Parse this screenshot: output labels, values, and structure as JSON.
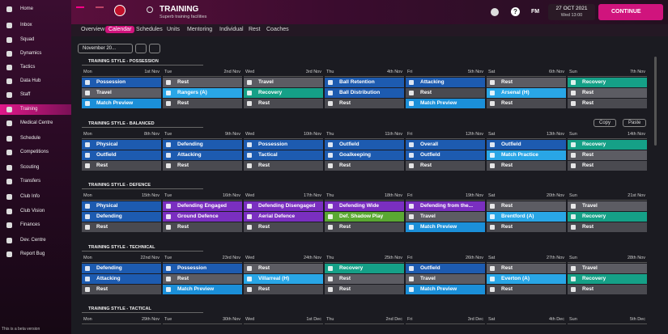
{
  "sidebar": {
    "items": [
      "Home",
      "Inbox",
      "Squad",
      "Dynamics",
      "Tactics",
      "Data Hub",
      "Staff",
      "Training",
      "Medical Centre",
      "Schedule",
      "Competitions",
      "Scouting",
      "Transfers",
      "Club Info",
      "Club Vision",
      "Finances",
      "Dev. Centre",
      "Report Bug"
    ],
    "active": 7,
    "footer": "This is a beta version"
  },
  "header": {
    "title": "TRAINING",
    "subtitle": "Superb training facilities",
    "fm": "FM",
    "help": "?",
    "date": "27 OCT 2021",
    "time": "Wed 13:00",
    "continue": "CONTINUE"
  },
  "tabs": {
    "items": [
      "Overview",
      "Calendar",
      "Schedules",
      "Units",
      "Mentoring",
      "Individual",
      "Rest",
      "Coaches"
    ],
    "active": 1
  },
  "month": "November 20...",
  "buttons": {
    "copy": "Copy",
    "paste": "Paste"
  },
  "weeks": [
    {
      "style": "TRAINING STYLE - POSSESSION",
      "days": [
        {
          "name": "Mon",
          "date": "1st Nov"
        },
        {
          "name": "Tue",
          "date": "2nd Nov"
        },
        {
          "name": "Wed",
          "date": "3rd Nov"
        },
        {
          "name": "Thu",
          "date": "4th Nov"
        },
        {
          "name": "Fri",
          "date": "5th Nov"
        },
        {
          "name": "Sat",
          "date": "6th Nov"
        },
        {
          "name": "Sun",
          "date": "7th Nov"
        }
      ],
      "rows": [
        [
          {
            "label": "Possession",
            "color": "#1d5bb0"
          },
          {
            "label": "Rest",
            "color": "#5c5c63"
          },
          {
            "label": "Travel",
            "color": "#5c5c63"
          },
          {
            "label": "Ball Retention",
            "color": "#1d5bb0"
          },
          {
            "label": "Attacking",
            "color": "#1d5bb0"
          },
          {
            "label": "Rest",
            "color": "#5c5c63"
          },
          {
            "label": "Recovery",
            "color": "#15a087"
          }
        ],
        [
          {
            "label": "Travel",
            "color": "#5c5c63"
          },
          {
            "label": "Rangers (A)",
            "color": "#29a6e6"
          },
          {
            "label": "Recovery",
            "color": "#15a087"
          },
          {
            "label": "Ball Distribution",
            "color": "#1d5bb0"
          },
          {
            "label": "Rest",
            "color": "#4a4a50"
          },
          {
            "label": "Arsenal (H)",
            "color": "#29a6e6"
          },
          {
            "label": "Rest",
            "color": "#5c5c63"
          }
        ],
        [
          {
            "label": "Match Preview",
            "color": "#1b8fd8"
          },
          {
            "label": "Rest",
            "color": "#4a4a50"
          },
          {
            "label": "Rest",
            "color": "#4a4a50"
          },
          {
            "label": "Rest",
            "color": "#4a4a50"
          },
          {
            "label": "Match Preview",
            "color": "#1b8fd8"
          },
          {
            "label": "Rest",
            "color": "#4a4a50"
          },
          {
            "label": "Rest",
            "color": "#4a4a50"
          }
        ]
      ]
    },
    {
      "style": "TRAINING STYLE - BALANCED",
      "days": [
        {
          "name": "Mon",
          "date": "8th Nov"
        },
        {
          "name": "Tue",
          "date": "9th Nov"
        },
        {
          "name": "Wed",
          "date": "10th Nov"
        },
        {
          "name": "Thu",
          "date": "11th Nov"
        },
        {
          "name": "Fri",
          "date": "12th Nov"
        },
        {
          "name": "Sat",
          "date": "13th Nov"
        },
        {
          "name": "Sun",
          "date": "14th Nov"
        }
      ],
      "rows": [
        [
          {
            "label": "Physical",
            "color": "#1d5bb0"
          },
          {
            "label": "Defending",
            "color": "#1d5bb0"
          },
          {
            "label": "Possession",
            "color": "#1d5bb0"
          },
          {
            "label": "Outfield",
            "color": "#1d5bb0"
          },
          {
            "label": "Overall",
            "color": "#1d5bb0"
          },
          {
            "label": "Outfield",
            "color": "#1d5bb0"
          },
          {
            "label": "Recovery",
            "color": "#15a087"
          }
        ],
        [
          {
            "label": "Outfield",
            "color": "#1d5bb0"
          },
          {
            "label": "Attacking",
            "color": "#1d5bb0"
          },
          {
            "label": "Tactical",
            "color": "#1d5bb0"
          },
          {
            "label": "Goalkeeping",
            "color": "#1d5bb0"
          },
          {
            "label": "Outfield",
            "color": "#1d5bb0"
          },
          {
            "label": "Match Practice",
            "color": "#29a6e6"
          },
          {
            "label": "Rest",
            "color": "#5c5c63"
          }
        ],
        [
          {
            "label": "Rest",
            "color": "#4a4a50"
          },
          {
            "label": "Rest",
            "color": "#4a4a50"
          },
          {
            "label": "Rest",
            "color": "#4a4a50"
          },
          {
            "label": "Rest",
            "color": "#4a4a50"
          },
          {
            "label": "Rest",
            "color": "#4a4a50"
          },
          {
            "label": "Rest",
            "color": "#4a4a50"
          },
          {
            "label": "Rest",
            "color": "#4a4a50"
          }
        ]
      ]
    },
    {
      "style": "TRAINING STYLE - DEFENCE",
      "days": [
        {
          "name": "Mon",
          "date": "15th Nov"
        },
        {
          "name": "Tue",
          "date": "16th Nov"
        },
        {
          "name": "Wed",
          "date": "17th Nov"
        },
        {
          "name": "Thu",
          "date": "18th Nov"
        },
        {
          "name": "Fri",
          "date": "19th Nov"
        },
        {
          "name": "Sat",
          "date": "20th Nov"
        },
        {
          "name": "Sun",
          "date": "21st Nov"
        }
      ],
      "rows": [
        [
          {
            "label": "Physical",
            "color": "#1d5bb0"
          },
          {
            "label": "Defending Engaged",
            "color": "#7a2fc0"
          },
          {
            "label": "Defending Disengaged",
            "color": "#7a2fc0"
          },
          {
            "label": "Defending Wide",
            "color": "#7a2fc0"
          },
          {
            "label": "Defending from the...",
            "color": "#7a2fc0"
          },
          {
            "label": "Rest",
            "color": "#5c5c63"
          },
          {
            "label": "Travel",
            "color": "#5c5c63"
          }
        ],
        [
          {
            "label": "Defending",
            "color": "#1d5bb0"
          },
          {
            "label": "Ground Defence",
            "color": "#7a2fc0"
          },
          {
            "label": "Aerial Defence",
            "color": "#7a2fc0"
          },
          {
            "label": "Def. Shadow Play",
            "color": "#5aa832"
          },
          {
            "label": "Travel",
            "color": "#5c5c63"
          },
          {
            "label": "Brentford (A)",
            "color": "#29a6e6"
          },
          {
            "label": "Recovery",
            "color": "#15a087"
          }
        ],
        [
          {
            "label": "Rest",
            "color": "#4a4a50"
          },
          {
            "label": "Rest",
            "color": "#4a4a50"
          },
          {
            "label": "Rest",
            "color": "#4a4a50"
          },
          {
            "label": "Rest",
            "color": "#4a4a50"
          },
          {
            "label": "Match Preview",
            "color": "#1b8fd8"
          },
          {
            "label": "Rest",
            "color": "#4a4a50"
          },
          {
            "label": "Rest",
            "color": "#4a4a50"
          }
        ]
      ]
    },
    {
      "style": "TRAINING STYLE - TECHNICAL",
      "days": [
        {
          "name": "Mon",
          "date": "22nd Nov"
        },
        {
          "name": "Tue",
          "date": "23rd Nov"
        },
        {
          "name": "Wed",
          "date": "24th Nov"
        },
        {
          "name": "Thu",
          "date": "25th Nov"
        },
        {
          "name": "Fri",
          "date": "26th Nov"
        },
        {
          "name": "Sat",
          "date": "27th Nov"
        },
        {
          "name": "Sun",
          "date": "28th Nov"
        }
      ],
      "rows": [
        [
          {
            "label": "Defending",
            "color": "#1d5bb0"
          },
          {
            "label": "Possession",
            "color": "#1d5bb0"
          },
          {
            "label": "Rest",
            "color": "#5c5c63"
          },
          {
            "label": "Recovery",
            "color": "#15a087"
          },
          {
            "label": "Outfield",
            "color": "#1d5bb0"
          },
          {
            "label": "Rest",
            "color": "#5c5c63"
          },
          {
            "label": "Travel",
            "color": "#5c5c63"
          }
        ],
        [
          {
            "label": "Attacking",
            "color": "#1d5bb0"
          },
          {
            "label": "Rest",
            "color": "#5c5c63"
          },
          {
            "label": "Villarreal (H)",
            "color": "#29a6e6"
          },
          {
            "label": "Rest",
            "color": "#5c5c63"
          },
          {
            "label": "Travel",
            "color": "#5c5c63"
          },
          {
            "label": "Everton (A)",
            "color": "#29a6e6"
          },
          {
            "label": "Recovery",
            "color": "#15a087"
          }
        ],
        [
          {
            "label": "Rest",
            "color": "#4a4a50"
          },
          {
            "label": "Match Preview",
            "color": "#1b8fd8"
          },
          {
            "label": "Rest",
            "color": "#4a4a50"
          },
          {
            "label": "Rest",
            "color": "#4a4a50"
          },
          {
            "label": "Match Preview",
            "color": "#1b8fd8"
          },
          {
            "label": "Rest",
            "color": "#4a4a50"
          },
          {
            "label": "Rest",
            "color": "#4a4a50"
          }
        ]
      ]
    },
    {
      "style": "TRAINING STYLE - TACTICAL",
      "days": [
        {
          "name": "Mon",
          "date": "29th Nov"
        },
        {
          "name": "Tue",
          "date": "30th Nov"
        },
        {
          "name": "Wed",
          "date": "1st Dec"
        },
        {
          "name": "Thu",
          "date": "2nd Dec"
        },
        {
          "name": "Fri",
          "date": "3rd Dec"
        },
        {
          "name": "Sat",
          "date": "4th Dec"
        },
        {
          "name": "Sun",
          "date": "5th Dec"
        }
      ],
      "rows": []
    }
  ]
}
